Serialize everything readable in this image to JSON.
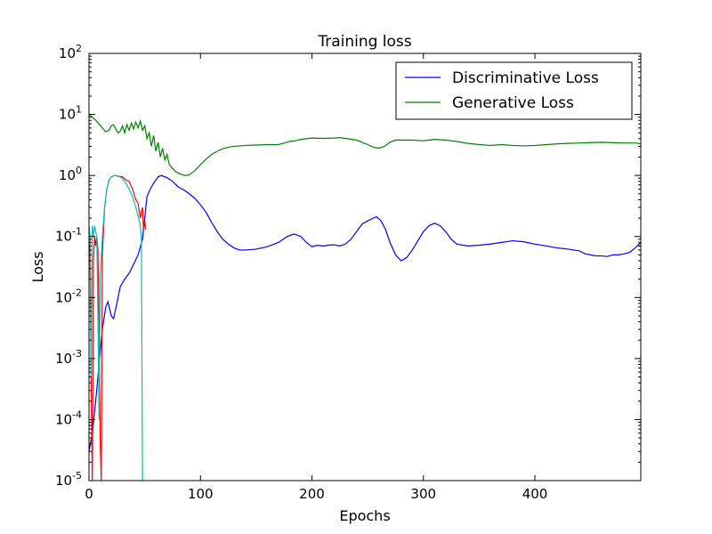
{
  "chart_data": {
    "type": "line",
    "title": "Training loss",
    "xlabel": "Epochs",
    "ylabel": "Loss",
    "xlim": [
      0,
      495
    ],
    "ylim": [
      1e-05,
      100
    ],
    "yscale": "log",
    "x_ticks": [
      {
        "value": 0,
        "label": "0"
      },
      {
        "value": 100,
        "label": "100"
      },
      {
        "value": 200,
        "label": "200"
      },
      {
        "value": 300,
        "label": "300"
      },
      {
        "value": 400,
        "label": "400"
      }
    ],
    "y_ticks": [
      {
        "value": 1e-05,
        "base": "10",
        "exp": "-5"
      },
      {
        "value": 0.0001,
        "base": "10",
        "exp": "-4"
      },
      {
        "value": 0.001,
        "base": "10",
        "exp": "-3"
      },
      {
        "value": 0.01,
        "base": "10",
        "exp": "-2"
      },
      {
        "value": 0.1,
        "base": "10",
        "exp": "-1"
      },
      {
        "value": 1,
        "base": "10",
        "exp": "0"
      },
      {
        "value": 10,
        "base": "10",
        "exp": "1"
      },
      {
        "value": 100,
        "base": "10",
        "exp": "2"
      }
    ],
    "grid": false,
    "legend_position": "top-right",
    "series": [
      {
        "name": "Discriminative Loss",
        "color": "#0000ff",
        "in_legend": true,
        "points": [
          [
            0,
            3e-05
          ],
          [
            3,
            6e-05
          ],
          [
            6,
            0.0002
          ],
          [
            9,
            0.0008
          ],
          [
            12,
            0.003
          ],
          [
            15,
            0.007
          ],
          [
            17,
            0.0085
          ],
          [
            20,
            0.005
          ],
          [
            22,
            0.0045
          ],
          [
            25,
            0.008
          ],
          [
            28,
            0.015
          ],
          [
            32,
            0.02
          ],
          [
            36,
            0.025
          ],
          [
            40,
            0.035
          ],
          [
            44,
            0.05
          ],
          [
            48,
            0.09
          ],
          [
            50,
            0.2
          ],
          [
            52,
            0.45
          ],
          [
            55,
            0.6
          ],
          [
            58,
            0.75
          ],
          [
            62,
            0.95
          ],
          [
            65,
            1.0
          ],
          [
            70,
            0.92
          ],
          [
            75,
            0.8
          ],
          [
            80,
            0.65
          ],
          [
            85,
            0.58
          ],
          [
            90,
            0.5
          ],
          [
            95,
            0.42
          ],
          [
            100,
            0.33
          ],
          [
            105,
            0.25
          ],
          [
            110,
            0.17
          ],
          [
            115,
            0.12
          ],
          [
            120,
            0.09
          ],
          [
            125,
            0.075
          ],
          [
            130,
            0.065
          ],
          [
            135,
            0.06
          ],
          [
            140,
            0.06
          ],
          [
            145,
            0.061
          ],
          [
            150,
            0.062
          ],
          [
            160,
            0.068
          ],
          [
            170,
            0.08
          ],
          [
            178,
            0.1
          ],
          [
            184,
            0.11
          ],
          [
            190,
            0.1
          ],
          [
            195,
            0.08
          ],
          [
            200,
            0.068
          ],
          [
            205,
            0.072
          ],
          [
            210,
            0.07
          ],
          [
            215,
            0.072
          ],
          [
            220,
            0.073
          ],
          [
            225,
            0.07
          ],
          [
            230,
            0.075
          ],
          [
            235,
            0.09
          ],
          [
            240,
            0.12
          ],
          [
            245,
            0.16
          ],
          [
            250,
            0.18
          ],
          [
            255,
            0.2
          ],
          [
            258,
            0.21
          ],
          [
            262,
            0.18
          ],
          [
            266,
            0.13
          ],
          [
            270,
            0.08
          ],
          [
            275,
            0.05
          ],
          [
            280,
            0.04
          ],
          [
            285,
            0.045
          ],
          [
            290,
            0.06
          ],
          [
            295,
            0.085
          ],
          [
            300,
            0.12
          ],
          [
            305,
            0.15
          ],
          [
            310,
            0.165
          ],
          [
            315,
            0.15
          ],
          [
            320,
            0.12
          ],
          [
            325,
            0.09
          ],
          [
            330,
            0.075
          ],
          [
            340,
            0.07
          ],
          [
            350,
            0.072
          ],
          [
            360,
            0.075
          ],
          [
            370,
            0.08
          ],
          [
            380,
            0.085
          ],
          [
            390,
            0.082
          ],
          [
            400,
            0.075
          ],
          [
            410,
            0.07
          ],
          [
            420,
            0.065
          ],
          [
            430,
            0.062
          ],
          [
            440,
            0.058
          ],
          [
            445,
            0.052
          ],
          [
            450,
            0.05
          ],
          [
            455,
            0.048
          ],
          [
            460,
            0.048
          ],
          [
            465,
            0.047
          ],
          [
            470,
            0.05
          ],
          [
            475,
            0.05
          ],
          [
            480,
            0.052
          ],
          [
            485,
            0.055
          ],
          [
            490,
            0.065
          ],
          [
            495,
            0.08
          ]
        ]
      },
      {
        "name": "Generative Loss",
        "color": "#008000",
        "in_legend": true,
        "points": [
          [
            0,
            10
          ],
          [
            3,
            9.0
          ],
          [
            6,
            8.0
          ],
          [
            9,
            7.0
          ],
          [
            12,
            6.0
          ],
          [
            15,
            5.2
          ],
          [
            18,
            5.5
          ],
          [
            20,
            6.5
          ],
          [
            22,
            6.8
          ],
          [
            24,
            5.8
          ],
          [
            26,
            5.0
          ],
          [
            28,
            5.3
          ],
          [
            30,
            6.5
          ],
          [
            32,
            5.0
          ],
          [
            34,
            6.8
          ],
          [
            36,
            5.5
          ],
          [
            38,
            7.2
          ],
          [
            40,
            5.8
          ],
          [
            42,
            7.5
          ],
          [
            44,
            6.0
          ],
          [
            46,
            7.8
          ],
          [
            48,
            5.5
          ],
          [
            50,
            6.5
          ],
          [
            52,
            4.0
          ],
          [
            54,
            5.0
          ],
          [
            56,
            3.0
          ],
          [
            58,
            4.5
          ],
          [
            60,
            2.5
          ],
          [
            62,
            3.5
          ],
          [
            64,
            2.0
          ],
          [
            66,
            2.8
          ],
          [
            68,
            1.8
          ],
          [
            70,
            2.2
          ],
          [
            72,
            1.5
          ],
          [
            75,
            1.3
          ],
          [
            78,
            1.15
          ],
          [
            82,
            1.05
          ],
          [
            86,
            1.0
          ],
          [
            90,
            1.02
          ],
          [
            95,
            1.2
          ],
          [
            100,
            1.5
          ],
          [
            105,
            1.85
          ],
          [
            110,
            2.2
          ],
          [
            115,
            2.5
          ],
          [
            120,
            2.75
          ],
          [
            125,
            2.9
          ],
          [
            130,
            3.0
          ],
          [
            140,
            3.1
          ],
          [
            150,
            3.15
          ],
          [
            160,
            3.2
          ],
          [
            170,
            3.2
          ],
          [
            175,
            3.4
          ],
          [
            180,
            3.6
          ],
          [
            185,
            3.7
          ],
          [
            190,
            3.9
          ],
          [
            195,
            4.0
          ],
          [
            200,
            4.1
          ],
          [
            210,
            4.05
          ],
          [
            220,
            4.1
          ],
          [
            225,
            4.15
          ],
          [
            230,
            4.05
          ],
          [
            240,
            3.8
          ],
          [
            250,
            3.2
          ],
          [
            255,
            2.9
          ],
          [
            260,
            2.8
          ],
          [
            265,
            3.0
          ],
          [
            270,
            3.5
          ],
          [
            275,
            3.8
          ],
          [
            280,
            3.8
          ],
          [
            290,
            3.8
          ],
          [
            300,
            3.7
          ],
          [
            305,
            3.8
          ],
          [
            310,
            3.9
          ],
          [
            315,
            3.85
          ],
          [
            320,
            3.8
          ],
          [
            330,
            3.6
          ],
          [
            340,
            3.35
          ],
          [
            350,
            3.2
          ],
          [
            360,
            3.1
          ],
          [
            370,
            3.2
          ],
          [
            380,
            3.1
          ],
          [
            390,
            3.05
          ],
          [
            400,
            3.1
          ],
          [
            410,
            3.2
          ],
          [
            420,
            3.3
          ],
          [
            430,
            3.35
          ],
          [
            440,
            3.4
          ],
          [
            450,
            3.45
          ],
          [
            460,
            3.5
          ],
          [
            470,
            3.45
          ],
          [
            480,
            3.4
          ],
          [
            490,
            3.4
          ],
          [
            495,
            3.3
          ]
        ]
      },
      {
        "name": "",
        "color": "#ff0000",
        "in_legend": false,
        "points": [
          [
            0,
            0.08
          ],
          [
            1,
            0.05
          ],
          [
            2,
            0.0003
          ],
          [
            3,
            1e-05
          ],
          [
            4,
            0.04
          ],
          [
            5,
            0.1
          ],
          [
            6,
            0.07
          ],
          [
            7,
            0.1
          ],
          [
            8,
            0.06
          ],
          [
            9,
            0.004
          ],
          [
            10,
            5e-05
          ],
          [
            11,
            1e-05
          ],
          [
            12,
            0.05
          ],
          [
            14,
            0.3
          ],
          [
            16,
            0.6
          ],
          [
            18,
            0.85
          ],
          [
            20,
            0.95
          ],
          [
            23,
            1.0
          ],
          [
            26,
            0.97
          ],
          [
            30,
            0.95
          ],
          [
            33,
            0.85
          ],
          [
            36,
            0.8
          ],
          [
            39,
            0.6
          ],
          [
            42,
            0.4
          ],
          [
            44,
            0.35
          ],
          [
            46,
            0.2
          ],
          [
            48,
            0.3
          ],
          [
            49,
            0.12
          ],
          [
            50,
            0.18
          ],
          [
            51,
            0.13
          ]
        ]
      },
      {
        "name": "",
        "color": "#00bfbf",
        "in_legend": false,
        "points": [
          [
            0,
            0.15
          ],
          [
            1,
            0.1
          ],
          [
            2,
            0.0005
          ],
          [
            3,
            0.15
          ],
          [
            4,
            0.1
          ],
          [
            5,
            0.15
          ],
          [
            6,
            0.12
          ],
          [
            7,
            0.1
          ],
          [
            8,
            0.005
          ],
          [
            9,
            0.0001
          ],
          [
            10,
            0.02
          ],
          [
            12,
            0.1
          ],
          [
            14,
            0.3
          ],
          [
            16,
            0.6
          ],
          [
            18,
            0.85
          ],
          [
            20,
            0.95
          ],
          [
            23,
            1.0
          ],
          [
            26,
            0.98
          ],
          [
            30,
            0.9
          ],
          [
            33,
            0.75
          ],
          [
            36,
            0.6
          ],
          [
            39,
            0.45
          ],
          [
            42,
            0.3
          ],
          [
            44,
            0.22
          ],
          [
            46,
            0.15
          ],
          [
            47,
            0.1
          ],
          [
            48,
            1e-05
          ]
        ]
      }
    ]
  }
}
